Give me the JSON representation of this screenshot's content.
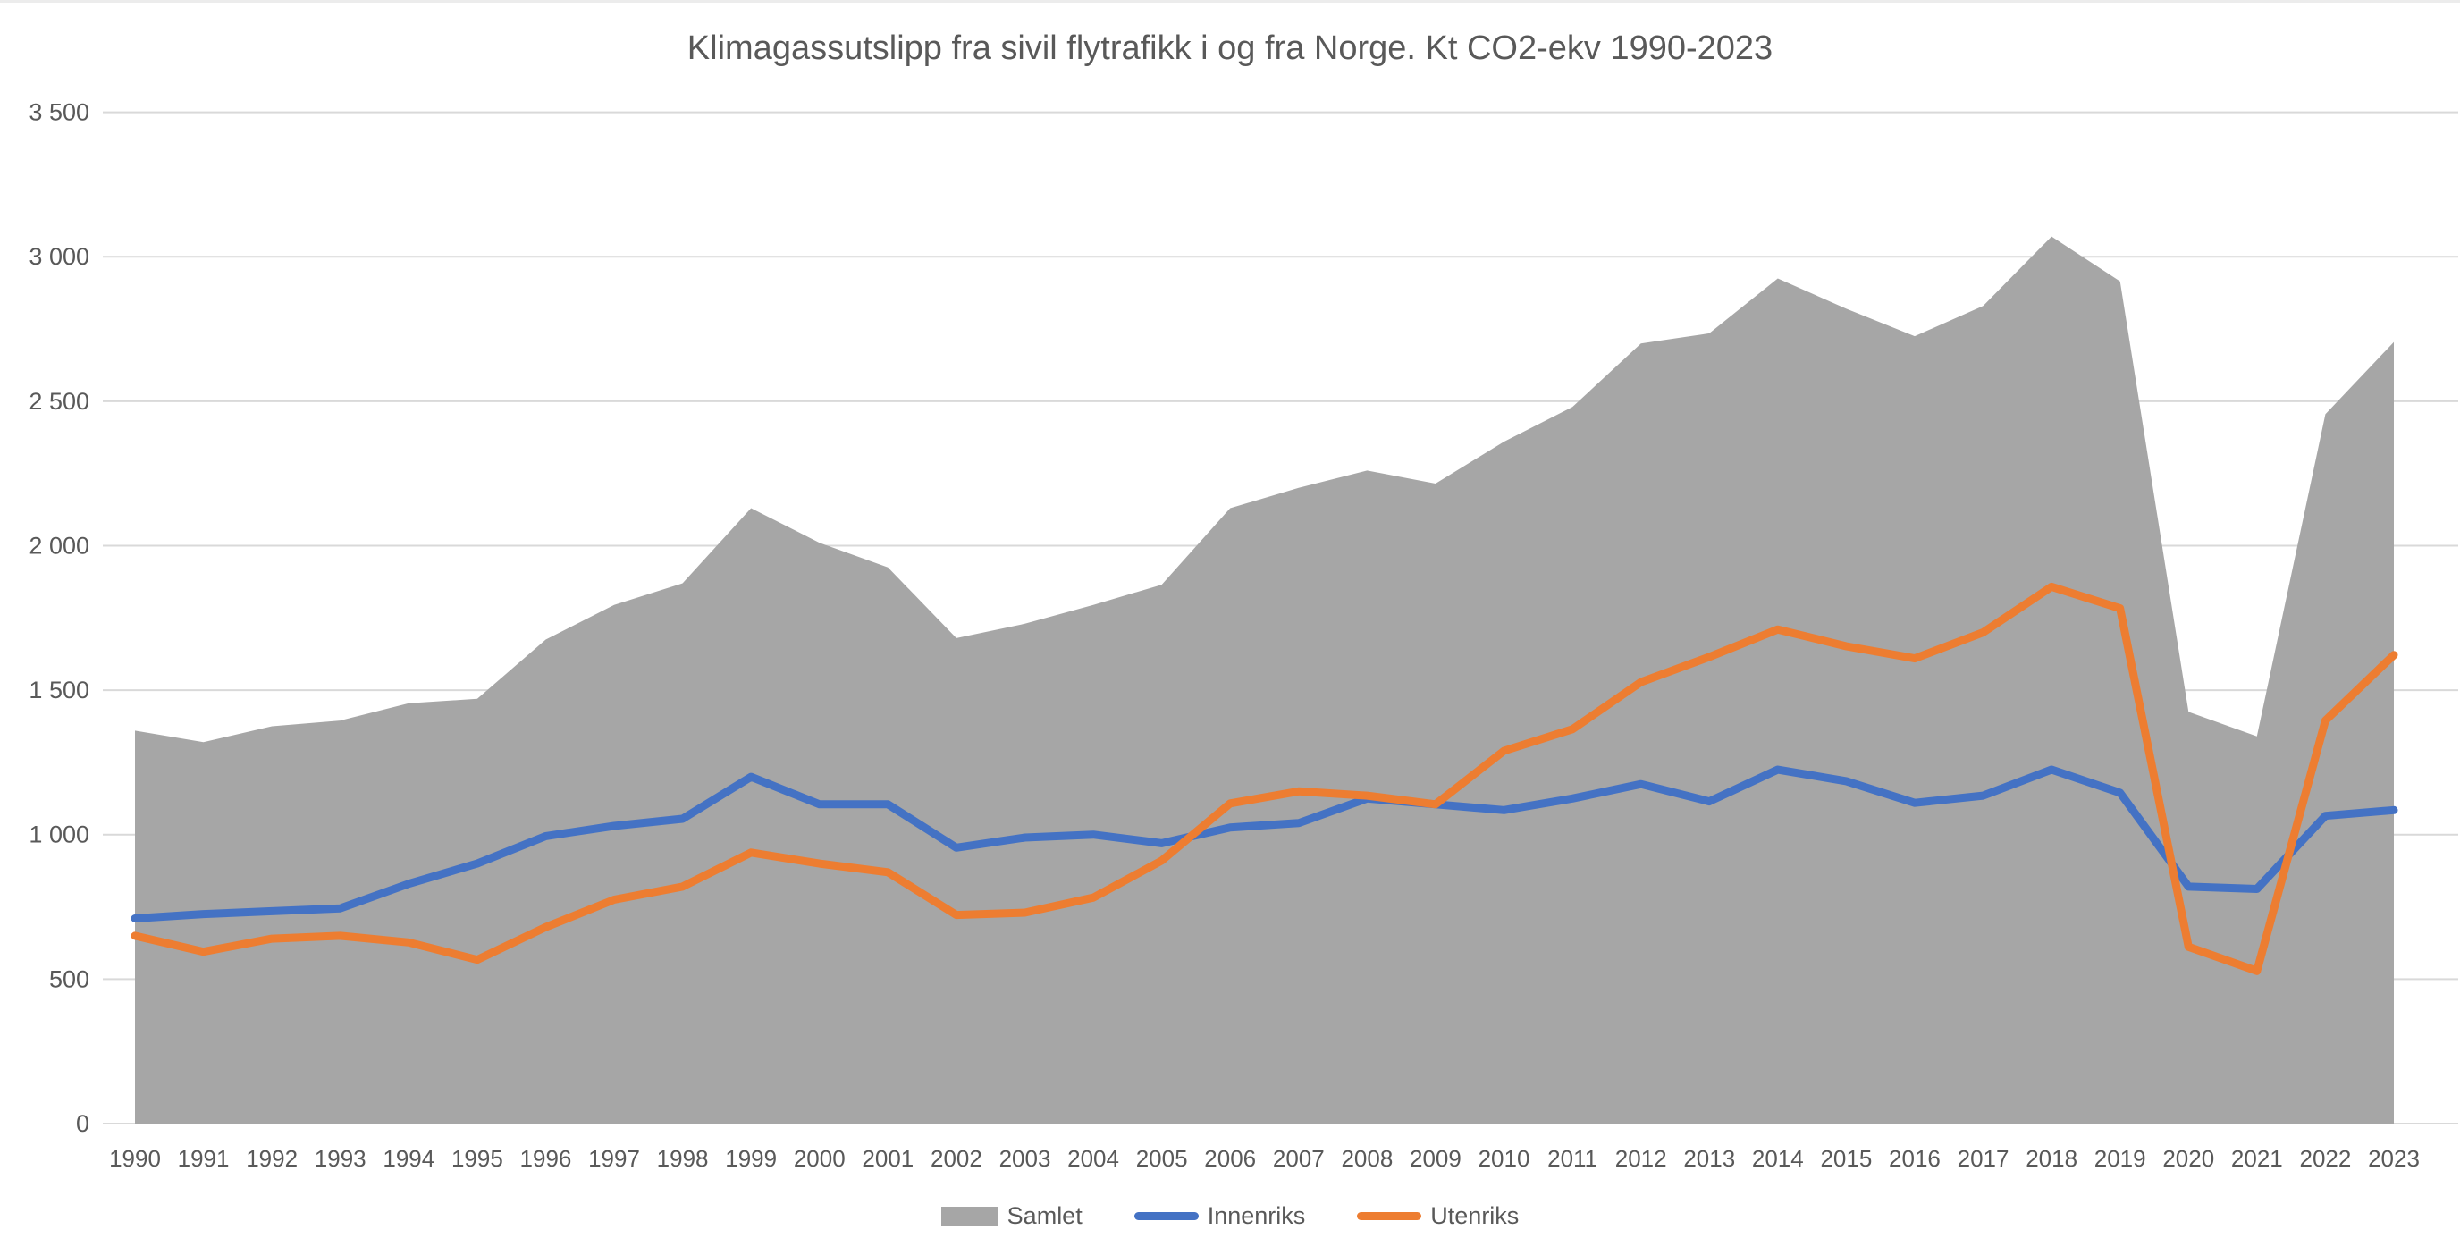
{
  "title": "Klimagassutslipp fra sivil flytrafikk i og fra Norge. Kt CO2-ekv 1990-2023",
  "colors": {
    "samlet": "#A6A6A6",
    "innenriks": "#4472C4",
    "utenriks": "#ED7D31",
    "grid": "#D9D9D9",
    "text": "#595959"
  },
  "legend": {
    "samlet_label": "Samlet",
    "innenriks_label": "Innenriks",
    "utenriks_label": "Utenriks"
  },
  "y_axis": {
    "min": 0,
    "max": 3500,
    "step": 500,
    "tick_labels": [
      "0",
      "500",
      "1 000",
      "1 500",
      "2 000",
      "2 500",
      "3 000",
      "3 500"
    ]
  },
  "chart_data": {
    "type": "area",
    "title": "Klimagassutslipp fra sivil flytrafikk i og fra Norge. Kt CO2-ekv 1990-2023",
    "xlabel": "",
    "ylabel": "",
    "ylim": [
      0,
      3500
    ],
    "grid": "horizontal",
    "legend_position": "bottom",
    "categories": [
      1990,
      1991,
      1992,
      1993,
      1994,
      1995,
      1996,
      1997,
      1998,
      1999,
      2000,
      2001,
      2002,
      2003,
      2004,
      2005,
      2006,
      2007,
      2008,
      2009,
      2010,
      2011,
      2012,
      2013,
      2014,
      2015,
      2016,
      2017,
      2018,
      2019,
      2020,
      2021,
      2022,
      2023
    ],
    "series": [
      {
        "name": "Samlet",
        "type": "area",
        "color": "#A6A6A6",
        "values": [
          1360,
          1320,
          1375,
          1395,
          1455,
          1470,
          1675,
          1795,
          1870,
          2130,
          2010,
          1925,
          1680,
          1730,
          1795,
          1865,
          2130,
          2200,
          2260,
          2215,
          2360,
          2480,
          2700,
          2735,
          2925,
          2820,
          2725,
          2830,
          3070,
          2915,
          1425,
          1340,
          2455,
          2705
        ]
      },
      {
        "name": "Innenriks",
        "type": "line",
        "color": "#4472C4",
        "values": [
          710,
          725,
          735,
          745,
          830,
          900,
          995,
          1030,
          1055,
          1200,
          1105,
          1105,
          955,
          990,
          1000,
          970,
          1025,
          1040,
          1125,
          1105,
          1085,
          1125,
          1175,
          1115,
          1225,
          1185,
          1110,
          1135,
          1225,
          1145,
          820,
          812,
          1065,
          1085
        ]
      },
      {
        "name": "Utenriks",
        "type": "line",
        "color": "#ED7D31",
        "values": [
          650,
          595,
          640,
          650,
          627,
          567,
          680,
          775,
          820,
          938,
          900,
          870,
          722,
          730,
          782,
          910,
          1108,
          1150,
          1135,
          1105,
          1290,
          1365,
          1528,
          1615,
          1710,
          1652,
          1610,
          1700,
          1858,
          1783,
          612,
          528,
          1395,
          1622
        ]
      }
    ]
  }
}
